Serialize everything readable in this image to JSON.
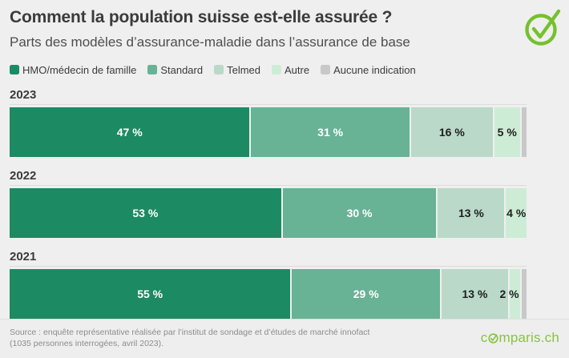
{
  "meta": {
    "title": "Comment la population suisse est-elle assurée ?",
    "subtitle": "Parts des modèles d’assurance-maladie dans l’assurance de base"
  },
  "colors": {
    "background": "#f0efef",
    "title_text": "#3b3b3b",
    "subtitle_text": "#4e4e4e",
    "badge_green": "#74c12d",
    "logo_green": "#85c440",
    "source_text": "#8c8c8c",
    "year_rule": "#dddcdc"
  },
  "legend": [
    {
      "label": "HMO/médecin de famille",
      "color": "#1c8a63"
    },
    {
      "label": "Standard",
      "color": "#68b295"
    },
    {
      "label": "Telmed",
      "color": "#bad9c9"
    },
    {
      "label": "Autre",
      "color": "#cdecd6"
    },
    {
      "label": "Aucune indication",
      "color": "#c8c8c8"
    }
  ],
  "chart_data": {
    "type": "bar",
    "stacked": true,
    "orientation": "horizontal",
    "unit": "%",
    "value_suffix": " %",
    "xlim": [
      0,
      100
    ],
    "grid": false,
    "legend_position": "top",
    "categories": [
      "2023",
      "2022",
      "2021"
    ],
    "series": [
      {
        "name": "HMO/médecin de famille",
        "values": [
          47,
          53,
          55
        ],
        "color": "#1c8a63",
        "label_color": "#ffffff",
        "show_labels": true
      },
      {
        "name": "Standard",
        "values": [
          31,
          30,
          29
        ],
        "color": "#68b295",
        "label_color": "#ffffff",
        "show_labels": true
      },
      {
        "name": "Telmed",
        "values": [
          16,
          13,
          13
        ],
        "color": "#bad9c9",
        "label_color": "#1f1f1f",
        "show_labels": true
      },
      {
        "name": "Autre",
        "values": [
          5,
          4,
          2
        ],
        "color": "#cdecd6",
        "label_color": "#1f1f1f",
        "show_labels": true
      },
      {
        "name": "Aucune indication",
        "values": [
          1,
          0,
          1
        ],
        "color": "#c8c8c8",
        "label_color": "#1f1f1f",
        "show_labels": false
      }
    ]
  },
  "footer": {
    "source_line1": "Source : enquête représentative réalisée par l’institut de sondage et d’études de marché innofact",
    "source_line2": "(1035 personnes interrogées, avril 2023).",
    "logo_prefix": "c",
    "logo_suffix": "mparis.ch"
  }
}
